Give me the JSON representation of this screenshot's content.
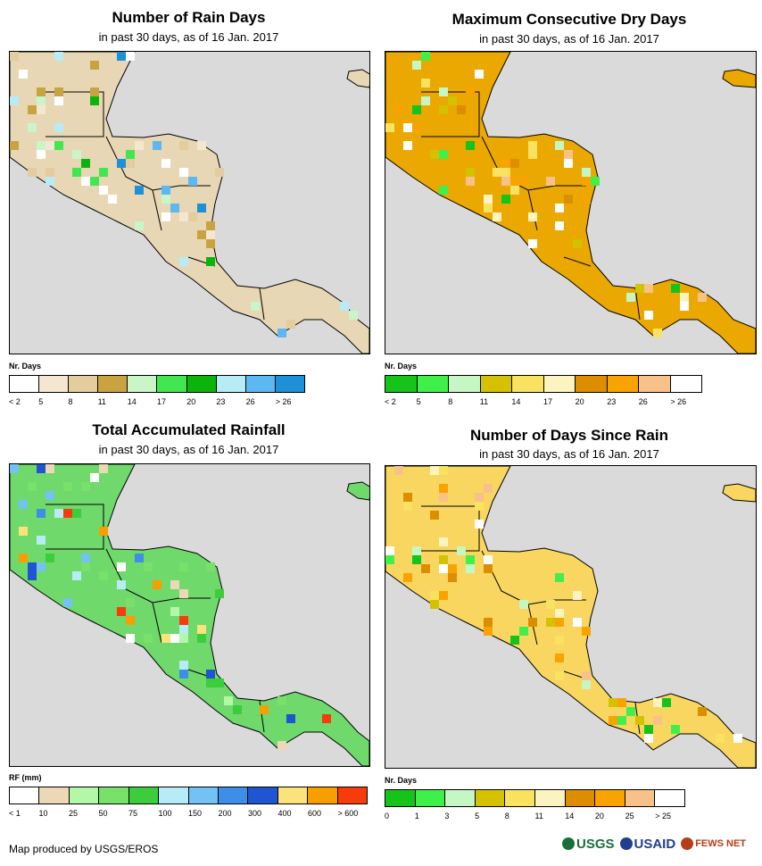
{
  "panels": [
    {
      "title": "Number of Rain Days",
      "subtitle": "in past 30 days, as of 16 Jan. 2017",
      "legend_label": "Nr. Days",
      "legend_colors": [
        "#ffffff",
        "#f5e6d0",
        "#e3cc9e",
        "#c9a33f",
        "#c9f5c9",
        "#41e650",
        "#0bb40b",
        "#b7ecf7",
        "#5bb8f2",
        "#1e90d8"
      ],
      "legend_ticks": [
        "< 2",
        "5",
        "8",
        "11",
        "14",
        "17",
        "20",
        "23",
        "26",
        "> 26"
      ],
      "fill": "#e8d7b5"
    },
    {
      "title": "Maximum Consecutive Dry Days",
      "subtitle": "in past 30 days, as of 16 Jan. 2017",
      "legend_label": "Nr. Days",
      "legend_colors": [
        "#15c31a",
        "#40f04a",
        "#c5f7c5",
        "#d4c200",
        "#f8e260",
        "#fbf4c0",
        "#dd8e00",
        "#f9a300",
        "#f9c18a",
        "#ffffff"
      ],
      "legend_ticks": [
        "< 2",
        "5",
        "8",
        "11",
        "14",
        "17",
        "20",
        "23",
        "26",
        "> 26"
      ],
      "fill": "#eaa800"
    },
    {
      "title": "Total Accumulated Rainfall",
      "subtitle": "in past 30 days, as of 16 Jan. 2017",
      "legend_label": "RF (mm)",
      "legend_colors": [
        "#ffffff",
        "#ecd7b6",
        "#b5f7a8",
        "#79e06a",
        "#3ccd3c",
        "#b7ecf7",
        "#74c1f4",
        "#3d8ee8",
        "#1f55d0",
        "#fbe27a",
        "#f99e00",
        "#f53c0a"
      ],
      "legend_ticks": [
        "< 1",
        "10",
        "25",
        "50",
        "75",
        "100",
        "150",
        "200",
        "300",
        "400",
        "600",
        "> 600"
      ],
      "fill": "#6fd96c"
    },
    {
      "title": "Number of Days Since Rain",
      "subtitle": "in past 30 days, as of 16 Jan. 2017",
      "legend_label": "Nr. Days",
      "legend_colors": [
        "#15c31a",
        "#40f04a",
        "#c5f7c5",
        "#d4c200",
        "#f8e260",
        "#fbf4c0",
        "#dd8e00",
        "#f9a300",
        "#f9c18a",
        "#ffffff"
      ],
      "legend_ticks": [
        "0",
        "1",
        "3",
        "5",
        "8",
        "11",
        "14",
        "20",
        "25",
        "> 25"
      ],
      "fill": "#f8d660"
    }
  ],
  "credit": "Map produced by USGS/EROS",
  "logos": {
    "usgs": "USGS",
    "usaid": "USAID",
    "fews": "FEWS NET"
  },
  "colors": {
    "ocean": "#dadada"
  }
}
